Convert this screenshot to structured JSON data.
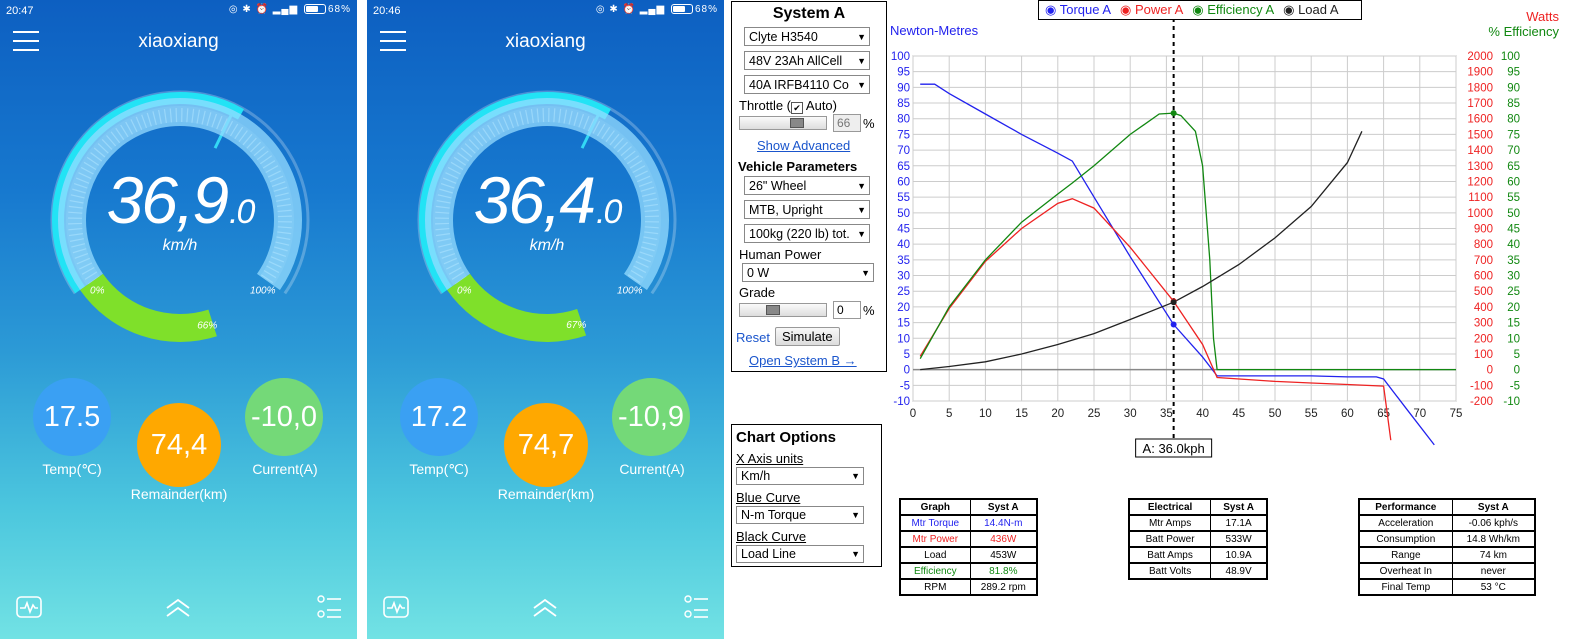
{
  "phones": [
    {
      "time": "20:47",
      "battery": "68%",
      "title": "xiaoxiang",
      "speed_int": "36,9",
      "speed_dec": ".0",
      "speed_unit": "km/h",
      "scale": [
        "0%",
        "66%",
        "100%"
      ],
      "battery_level": 0.66,
      "temp": "17.5",
      "temp_label": "Temp(℃)",
      "remainder": "74,4",
      "remainder_label": "Remainder(km)",
      "current": "-10,0",
      "current_label": "Current(A)"
    },
    {
      "time": "20:46",
      "battery": "68%",
      "title": "xiaoxiang",
      "speed_int": "36,4",
      "speed_dec": ".0",
      "speed_unit": "km/h",
      "scale": [
        "0%",
        "67%",
        "100%"
      ],
      "battery_level": 0.67,
      "temp": "17.2",
      "temp_label": "Temp(℃)",
      "remainder": "74,7",
      "remainder_label": "Remainder(km)",
      "current": "-10,9",
      "current_label": "Current(A)"
    }
  ],
  "icons": {
    "menu": "hamburger-icon",
    "pulse": "pulse-icon",
    "up": "chevron-up-double-icon",
    "settings": "list-settings-icon"
  },
  "system_a": {
    "title": "System A",
    "motor": "Clyte H3540",
    "battery": "48V 23Ah AllCell",
    "controller": "40A IRFB4110 Co",
    "throttle_label": "Throttle (",
    "auto_label": "Auto)",
    "auto_checked": true,
    "throttle_value": "66",
    "throttle_pct": "%",
    "show_advanced": "Show Advanced",
    "vehicle_title": "Vehicle Parameters",
    "wheel": "26\"  Wheel",
    "bike": "MTB, Upright",
    "weight": "100kg (220 lb) tot.",
    "human_label": "Human Power",
    "human": "0 W",
    "grade_label": "Grade",
    "grade_value": "0",
    "grade_pct": "%",
    "reset": "Reset",
    "simulate": "Simulate",
    "open_b": "Open System B →"
  },
  "chart_options": {
    "title": "Chart Options",
    "x_label": "X Axis units",
    "x_value": "Km/h",
    "blue_label": "Blue Curve",
    "blue_value": "N-m Torque",
    "black_label": "Black Curve",
    "black_value": "Load Line"
  },
  "chart_data": {
    "type": "line",
    "legend": [
      "Torque A",
      "Power A",
      "Efficiency A",
      "Load A"
    ],
    "left_axis_label": "Newton-Metres",
    "right_axis_label_1": "Watts",
    "right_axis_label_2": "% Efficiency",
    "xlim": [
      0,
      75
    ],
    "ylim_nm": [
      -10,
      100
    ],
    "ylim_watts": [
      -200,
      2000
    ],
    "ylim_eff": [
      -10,
      100
    ],
    "x_ticks": [
      0,
      5,
      10,
      15,
      20,
      25,
      30,
      35,
      40,
      45,
      50,
      55,
      60,
      65,
      70,
      75
    ],
    "nm_ticks": [
      -10,
      -5,
      0,
      5,
      10,
      15,
      20,
      25,
      30,
      35,
      40,
      45,
      50,
      55,
      60,
      65,
      70,
      75,
      80,
      85,
      90,
      95,
      100
    ],
    "watt_ticks": [
      -200,
      -100,
      0,
      100,
      200,
      300,
      400,
      500,
      600,
      700,
      800,
      900,
      1000,
      1100,
      1200,
      1300,
      1400,
      1500,
      1600,
      1700,
      1800,
      1900,
      2000
    ],
    "eff_ticks": [
      -10,
      -5,
      0,
      5,
      10,
      15,
      20,
      25,
      30,
      35,
      40,
      45,
      50,
      55,
      60,
      65,
      70,
      75,
      80,
      85,
      90,
      95,
      100
    ],
    "cursor_x": 36.0,
    "cursor_label": "A: 36.0kph",
    "grid": true,
    "colors": {
      "torque": "#2222ee",
      "power": "#ee2222",
      "efficiency": "#118811",
      "load": "#222222"
    },
    "series": [
      {
        "name": "Torque A",
        "axis": "nm",
        "x": [
          1,
          3,
          5,
          10,
          15,
          20,
          22,
          25,
          30,
          36,
          40,
          42,
          50,
          55,
          60,
          64,
          65,
          68,
          72
        ],
        "y": [
          91,
          91,
          88,
          81.5,
          75,
          69,
          66.5,
          55,
          36,
          14.4,
          4,
          -2,
          -2,
          -2,
          -2.3,
          -2.3,
          -3,
          -12,
          -24
        ]
      },
      {
        "name": "Power A",
        "axis": "watts",
        "x": [
          1,
          5,
          10,
          15,
          20,
          22,
          25,
          30,
          36,
          40,
          42,
          50,
          55,
          60,
          65,
          66
        ],
        "y": [
          85,
          390,
          690,
          900,
          1060,
          1090,
          1030,
          780,
          436,
          160,
          -50,
          -75,
          -85,
          -95,
          -105,
          -450
        ]
      },
      {
        "name": "Efficiency A",
        "axis": "eff",
        "x": [
          1,
          5,
          10,
          15,
          20,
          22,
          25,
          30,
          34,
          36,
          37,
          39,
          40,
          41,
          41.5,
          42,
          45,
          55,
          65,
          75
        ],
        "y": [
          3.5,
          20,
          35,
          47,
          56,
          59.5,
          65,
          75,
          81.5,
          81.8,
          81,
          76,
          65,
          35,
          10,
          0,
          0,
          0,
          0,
          0
        ]
      },
      {
        "name": "Load A",
        "axis": "nm",
        "x": [
          1,
          5,
          10,
          15,
          20,
          25,
          30,
          36,
          40,
          45,
          50,
          55,
          60,
          62
        ],
        "y": [
          0,
          1,
          2.5,
          5,
          8,
          11.5,
          16,
          21.5,
          26.5,
          33.5,
          42,
          52,
          66,
          76
        ]
      }
    ]
  },
  "tables": {
    "graph": {
      "headers": [
        "Graph",
        "Syst A"
      ],
      "rows": [
        [
          "Mtr Torque",
          "14.4N-m"
        ],
        [
          "Mtr Power",
          "436W"
        ],
        [
          "Load",
          "453W"
        ],
        [
          "Efficiency",
          "81.8%"
        ],
        [
          "RPM",
          "289.2 rpm"
        ]
      ],
      "row_colors": [
        "#2222ee",
        "#ee2222",
        "#000000",
        "#118811",
        "#000000"
      ]
    },
    "electrical": {
      "headers": [
        "Electrical",
        "Syst A"
      ],
      "rows": [
        [
          "Mtr Amps",
          "17.1A"
        ],
        [
          "Batt Power",
          "533W"
        ],
        [
          "Batt Amps",
          "10.9A"
        ],
        [
          "Batt Volts",
          "48.9V"
        ]
      ]
    },
    "performance": {
      "headers": [
        "Performance",
        "Syst A"
      ],
      "rows": [
        [
          "Acceleration",
          "-0.06 kph/s"
        ],
        [
          "Consumption",
          "14.8 Wh/km"
        ],
        [
          "Range",
          "74 km"
        ],
        [
          "Overheat In",
          "never"
        ],
        [
          "Final Temp",
          "53 °C"
        ]
      ]
    }
  }
}
